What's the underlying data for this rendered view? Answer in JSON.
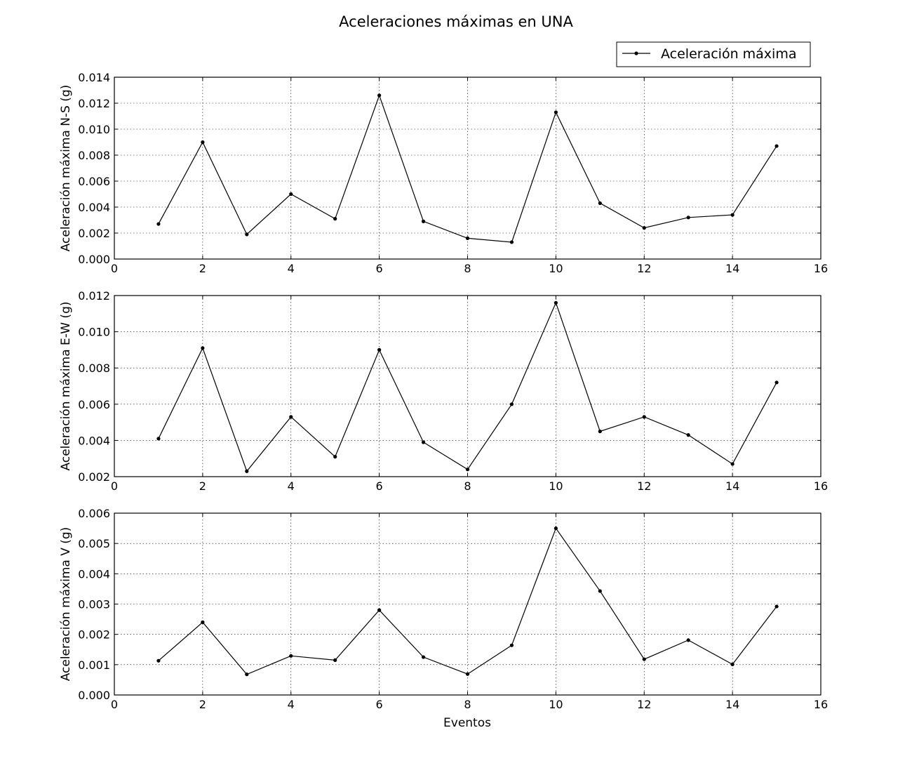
{
  "chart_data": {
    "type": "line",
    "title": "Aceleraciones máximas en UNA",
    "legend": {
      "label": "Aceleración máxima",
      "placement": "top-right"
    },
    "line_color": "#000000",
    "grid": true,
    "xlabel": "Eventos",
    "subplots": [
      {
        "name": "N-S",
        "ylabel": "Aceleración máxima N-S (g)",
        "xlim": [
          0,
          16
        ],
        "ylim": [
          0,
          0.014
        ],
        "xticks": [
          0,
          2,
          4,
          6,
          8,
          10,
          12,
          14,
          16
        ],
        "yticks": [
          "0.000",
          "0.002",
          "0.004",
          "0.006",
          "0.008",
          "0.010",
          "0.012",
          "0.014"
        ],
        "x": [
          1,
          2,
          3,
          4,
          5,
          6,
          7,
          8,
          9,
          10,
          11,
          12,
          13,
          14,
          15
        ],
        "values": [
          0.0027,
          0.009,
          0.0019,
          0.005,
          0.0031,
          0.0126,
          0.0029,
          0.0016,
          0.0013,
          0.0113,
          0.0043,
          0.0024,
          0.0032,
          0.0034,
          0.0087
        ]
      },
      {
        "name": "E-W",
        "ylabel": "Aceleración máxima E-W (g)",
        "xlim": [
          0,
          16
        ],
        "ylim": [
          0.002,
          0.012
        ],
        "xticks": [
          0,
          2,
          4,
          6,
          8,
          10,
          12,
          14,
          16
        ],
        "yticks": [
          "0.002",
          "0.004",
          "0.006",
          "0.008",
          "0.010",
          "0.012"
        ],
        "x": [
          1,
          2,
          3,
          4,
          5,
          6,
          7,
          8,
          9,
          10,
          11,
          12,
          13,
          14,
          15
        ],
        "values": [
          0.0041,
          0.0091,
          0.0023,
          0.0053,
          0.0031,
          0.009,
          0.0039,
          0.0024,
          0.006,
          0.0116,
          0.0045,
          0.0053,
          0.0043,
          0.0027,
          0.0072
        ]
      },
      {
        "name": "V",
        "ylabel": "Aceleración máxima V (g)",
        "xlim": [
          0,
          16
        ],
        "ylim": [
          0,
          0.006
        ],
        "xticks": [
          0,
          2,
          4,
          6,
          8,
          10,
          12,
          14,
          16
        ],
        "yticks": [
          "0.000",
          "0.001",
          "0.002",
          "0.003",
          "0.004",
          "0.005",
          "0.006"
        ],
        "x": [
          1,
          2,
          3,
          4,
          5,
          6,
          7,
          8,
          9,
          10,
          11,
          12,
          13,
          14,
          15
        ],
        "values": [
          0.00113,
          0.0024,
          0.00068,
          0.00129,
          0.00115,
          0.0028,
          0.00125,
          0.00069,
          0.00164,
          0.0055,
          0.00343,
          0.00118,
          0.00181,
          0.00101,
          0.00292
        ]
      }
    ]
  }
}
